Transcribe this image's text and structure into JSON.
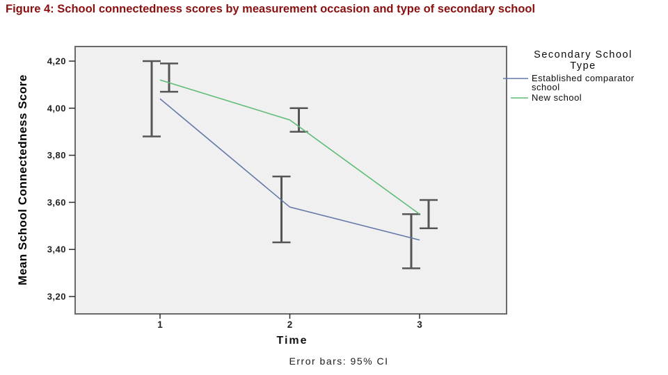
{
  "figure": {
    "title": "Figure 4: School connectedness scores by measurement occasion and type of secondary school",
    "title_color": "#8a1010"
  },
  "chart_data": {
    "type": "line",
    "title": "",
    "xlabel": "Time",
    "ylabel": "Mean School Connectedness Score",
    "footnote": "Error bars: 95% CI",
    "x_categories": [
      "1",
      "2",
      "3"
    ],
    "yticks": [
      {
        "value": 4.2,
        "label": "4,20"
      },
      {
        "value": 4.0,
        "label": "4,00"
      },
      {
        "value": 3.8,
        "label": "3,80"
      },
      {
        "value": 3.6,
        "label": "3,60"
      },
      {
        "value": 3.4,
        "label": "3,40"
      },
      {
        "value": 3.2,
        "label": "3,20"
      }
    ],
    "ylim": [
      3.15,
      4.26
    ],
    "grid": false,
    "plot_background": "#f0f0f0",
    "error_bars": "95% CI",
    "error_bar_color": "#555555",
    "legend": {
      "position": "right",
      "title_lines": [
        "Secondary School",
        "Type"
      ]
    },
    "series": [
      {
        "name": "Established comparator school",
        "name_lines": [
          "Established comparator",
          "school"
        ],
        "color": "#6478a8",
        "means": [
          4.04,
          3.58,
          3.44
        ],
        "ci_low": [
          3.88,
          3.43,
          3.32
        ],
        "ci_high": [
          4.2,
          3.71,
          3.55
        ]
      },
      {
        "name": "New school",
        "name_lines": [
          "New school"
        ],
        "color": "#5fbc75",
        "means": [
          4.12,
          3.95,
          3.55
        ],
        "ci_low": [
          4.07,
          3.9,
          3.49
        ],
        "ci_high": [
          4.19,
          4.0,
          3.61
        ]
      }
    ]
  }
}
